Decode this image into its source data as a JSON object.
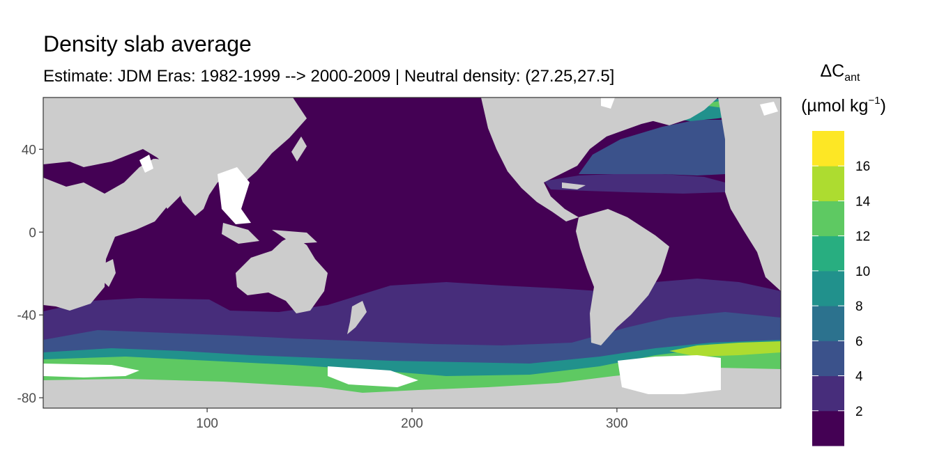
{
  "chart_data": {
    "type": "heatmap",
    "title": "Density slab average",
    "subtitle": "Estimate: JDM Eras: 1982-1999 --> 2000-2009 | Neutral density: (27.25,27.5]",
    "xlabel": "",
    "ylabel": "",
    "xlim": [
      20,
      380
    ],
    "ylim": [
      -85,
      65
    ],
    "x_ticks": [
      100,
      200,
      300
    ],
    "y_ticks": [
      40,
      0,
      -40,
      -80
    ],
    "grid": false,
    "legend_position": "right",
    "legend": {
      "title_main": "ΔC",
      "title_sub": "ant",
      "units_open": "(µmol kg",
      "units_sup": "−1",
      "units_close": ")",
      "breaks": [
        2,
        4,
        6,
        8,
        10,
        12,
        14,
        16
      ],
      "colors": [
        "#440154",
        "#472d7b",
        "#3b528b",
        "#2c728e",
        "#21918c",
        "#28ae80",
        "#5ec962",
        "#addc30",
        "#fde725"
      ]
    },
    "land_color": "#cccccc",
    "no_data_color": "#ffffff",
    "regions": [
      {
        "name": "pacific-indian-core",
        "level": 0
      },
      {
        "name": "southern-subantarctic-band",
        "level": 1
      },
      {
        "name": "southern-polar-front-band",
        "level": 2
      },
      {
        "name": "antarctic-margin",
        "level": 5
      },
      {
        "name": "weddell-front",
        "level": 7
      },
      {
        "name": "north-atlantic-subtropical",
        "level": 1
      },
      {
        "name": "north-atlantic-subpolar",
        "level": 2
      },
      {
        "name": "labrador-irminger",
        "level": 5
      }
    ]
  }
}
